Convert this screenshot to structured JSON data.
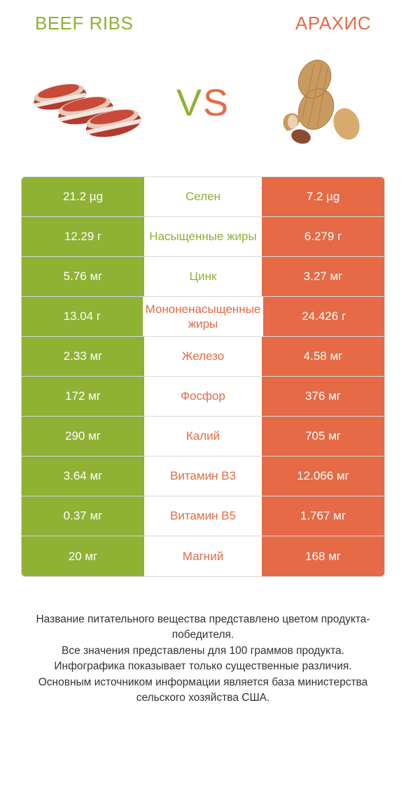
{
  "colors": {
    "food_a": "#8fb134",
    "food_b": "#e66a45",
    "vs_left": "#8fb134",
    "vs_right": "#e66a45",
    "cell_neutral": "#f7f7f7",
    "mid_bg": "#ffffff",
    "border": "#d9d9d9",
    "title_a": "#8fb134",
    "title_b": "#e66a45"
  },
  "food_a_title": "Beef ribs",
  "food_b_title": "Арахис",
  "vs_label": "VS",
  "rows": [
    {
      "nutrient": "Селен",
      "a": "21.2 µg",
      "b": "7.2 µg",
      "winner": "a"
    },
    {
      "nutrient": "Насыщенные жиры",
      "a": "12.29 г",
      "b": "6.279 г",
      "winner": "a"
    },
    {
      "nutrient": "Цинк",
      "a": "5.76 мг",
      "b": "3.27 мг",
      "winner": "a"
    },
    {
      "nutrient": "Мононенасыщенные жиры",
      "a": "13.04 г",
      "b": "24.426 г",
      "winner": "b"
    },
    {
      "nutrient": "Железо",
      "a": "2.33 мг",
      "b": "4.58 мг",
      "winner": "b"
    },
    {
      "nutrient": "Фосфор",
      "a": "172 мг",
      "b": "376 мг",
      "winner": "b"
    },
    {
      "nutrient": "Калий",
      "a": "290 мг",
      "b": "705 мг",
      "winner": "b"
    },
    {
      "nutrient": "Витамин B3",
      "a": "3.64 мг",
      "b": "12.066 мг",
      "winner": "b"
    },
    {
      "nutrient": "Витамин B5",
      "a": "0.37 мг",
      "b": "1.767 мг",
      "winner": "b"
    },
    {
      "nutrient": "Магний",
      "a": "20 мг",
      "b": "168 мг",
      "winner": "b"
    }
  ],
  "footer_lines": [
    "Название питательного вещества представлено цветом продукта-победителя.",
    "Все значения представлены для 100 граммов продукта.",
    "Инфографика показывает только существенные различия.",
    "Основным источником информации является база министерства сельского хозяйства США."
  ]
}
